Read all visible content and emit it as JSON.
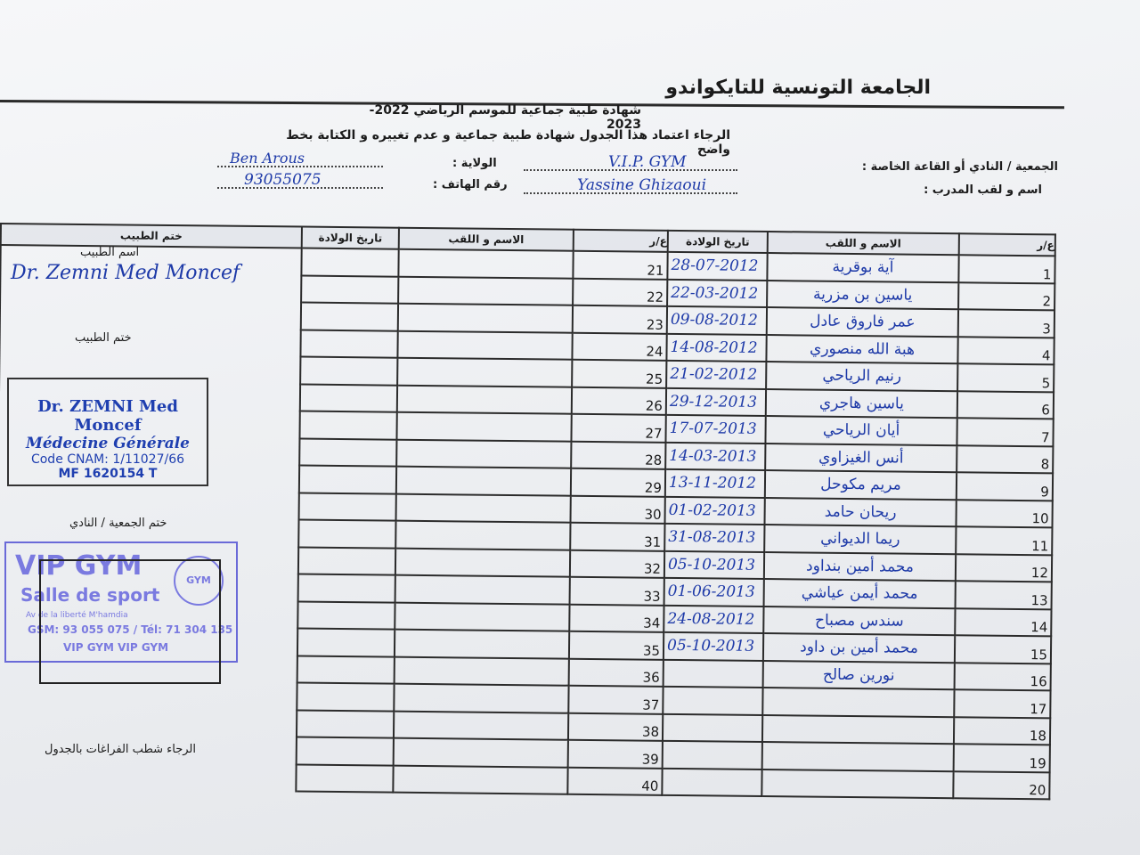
{
  "header": {
    "federation": "الجامعة التونسية للتايكواندو",
    "certificate_title": "شهادة طبية جماعية للموسم الرياضي 2022-2023",
    "instruction": "الرجاء اعتماد هذا الجدول شهادة طبية جماعية و عدم تغييره و الكتابة بخط واضح"
  },
  "form": {
    "club_label": "الجمعية / النادي أو القاعة الخاصة :",
    "club_value": "V.I.P. GYM",
    "governorate_label": "الولاية :",
    "governorate_value": "Ben Arous",
    "coach_label": "اسم و لقب المدرب :",
    "coach_value": "Yassine Ghizaoui",
    "phone_label": "رقم الهاتف :",
    "phone_value": "93055075"
  },
  "table": {
    "headers": {
      "number": "ع/ر",
      "name": "الاسم و اللقب",
      "birth_date": "تاريخ الولادة",
      "doctor_stamp": "ختم الطبيب"
    },
    "right_rows": [
      {
        "n": "1",
        "name": "آية بوقرية",
        "date": "28-07-2012"
      },
      {
        "n": "2",
        "name": "ياسين بن مزرية",
        "date": "22-03-2012"
      },
      {
        "n": "3",
        "name": "عمر فاروق عادل",
        "date": "09-08-2012"
      },
      {
        "n": "4",
        "name": "هبة الله منصوري",
        "date": "14-08-2012"
      },
      {
        "n": "5",
        "name": "رنيم الرياحي",
        "date": "21-02-2012"
      },
      {
        "n": "6",
        "name": "ياسين هاجري",
        "date": "29-12-2013"
      },
      {
        "n": "7",
        "name": "أيان الرياحي",
        "date": "17-07-2013"
      },
      {
        "n": "8",
        "name": "أنس الغيزاوي",
        "date": "14-03-2013"
      },
      {
        "n": "9",
        "name": "مريم مكوحل",
        "date": "13-11-2012"
      },
      {
        "n": "10",
        "name": "ريحان حامد",
        "date": "01-02-2013"
      },
      {
        "n": "11",
        "name": "ريما الديواني",
        "date": "31-08-2013"
      },
      {
        "n": "12",
        "name": "محمد أمين بنداود",
        "date": "05-10-2013"
      },
      {
        "n": "13",
        "name": "محمد أيمن عياشي",
        "date": "01-06-2013"
      },
      {
        "n": "14",
        "name": "سندس مصباح",
        "date": "24-08-2012"
      },
      {
        "n": "15",
        "name": "محمد أمين بن داود",
        "date": "05-10-2013"
      },
      {
        "n": "16",
        "name": "نورين صالح",
        "date": ""
      },
      {
        "n": "17",
        "name": "",
        "date": ""
      },
      {
        "n": "18",
        "name": "",
        "date": ""
      },
      {
        "n": "19",
        "name": "",
        "date": ""
      },
      {
        "n": "20",
        "name": "",
        "date": ""
      }
    ],
    "left_numbers": [
      "21",
      "22",
      "23",
      "24",
      "25",
      "26",
      "27",
      "28",
      "29",
      "30",
      "31",
      "32",
      "33",
      "34",
      "35",
      "36",
      "37",
      "38",
      "39",
      "40"
    ]
  },
  "doctor": {
    "name_label": "اسم الطبيب",
    "name_value": "Dr. Zemni Med Moncef",
    "stamp_label": "ختم الطبيب",
    "stamp_line1": "Dr. ZEMNI Med Moncef",
    "stamp_line2": "Médecine Générale",
    "stamp_line3": "Code CNAM: 1/11027/66",
    "stamp_line4": "MF 1620154 T"
  },
  "club_stamp": {
    "label": "ختم الجمعية / النادي",
    "name": "VIP GYM",
    "subtitle": "Salle de sport",
    "address": "Av de la liberté M'hamdia",
    "phones": "GSM: 93 055 075 / Tél: 71 304 135",
    "social": "VIP GYM   VIP GYM",
    "logo_text": "GYM",
    "color": "#7a7ae0"
  },
  "footer_note": "الرجاء شطب الفراغات بالجدول",
  "colors": {
    "ink": "#1e3aa8",
    "paper": "#eef0f3"
  }
}
